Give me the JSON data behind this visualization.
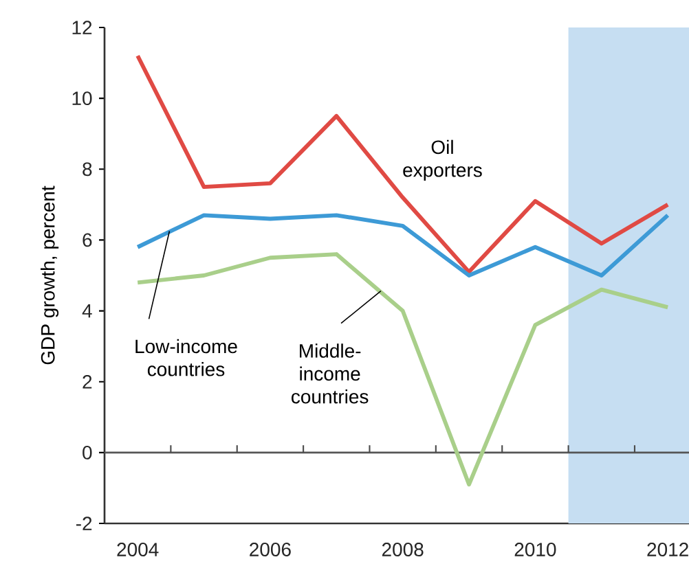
{
  "chart_data": {
    "type": "line",
    "ylabel": "GDP growth, percent",
    "x": [
      2004,
      2005,
      2006,
      2007,
      2008,
      2009,
      2010,
      2011,
      2012
    ],
    "series": [
      {
        "name": "Oil exporters",
        "color": "#e04a44",
        "values": [
          11.2,
          7.5,
          7.6,
          9.5,
          7.2,
          5.1,
          7.1,
          5.9,
          7.0
        ]
      },
      {
        "name": "Low-income countries",
        "color": "#3d9ad6",
        "values": [
          5.8,
          6.7,
          6.6,
          6.7,
          6.4,
          5.0,
          5.8,
          5.0,
          6.7
        ]
      },
      {
        "name": "Middle-income countries",
        "color": "#a9cf8a",
        "values": [
          4.8,
          5.0,
          5.5,
          5.6,
          4.0,
          -0.9,
          3.6,
          4.6,
          4.1
        ]
      }
    ],
    "xlim": [
      2003.5,
      2012.32
    ],
    "ylim": [
      -2,
      12
    ],
    "xticks": [
      2004,
      {
        "value": 2004.5,
        "label": null
      },
      {
        "value": 2005.5,
        "label": null
      },
      2006,
      {
        "value": 2006.5,
        "label": null
      },
      {
        "value": 2007.5,
        "label": null
      },
      2008,
      {
        "value": 2008.5,
        "label": null
      },
      {
        "value": 2009.5,
        "label": null
      },
      2010,
      {
        "value": 2010.5,
        "label": null
      },
      {
        "value": 2011.5,
        "label": null
      },
      2012
    ],
    "yticks": [
      -2,
      0,
      2,
      4,
      6,
      8,
      10,
      12
    ],
    "ref_lines": [
      {
        "axis": "y",
        "value": 0,
        "color": "#555555"
      }
    ],
    "bands": [
      {
        "axis": "x",
        "from": 2010.5,
        "to": 2012.32,
        "color": "#c6def2"
      }
    ],
    "grid": false,
    "marker": "none",
    "line_style": "solid"
  }
}
